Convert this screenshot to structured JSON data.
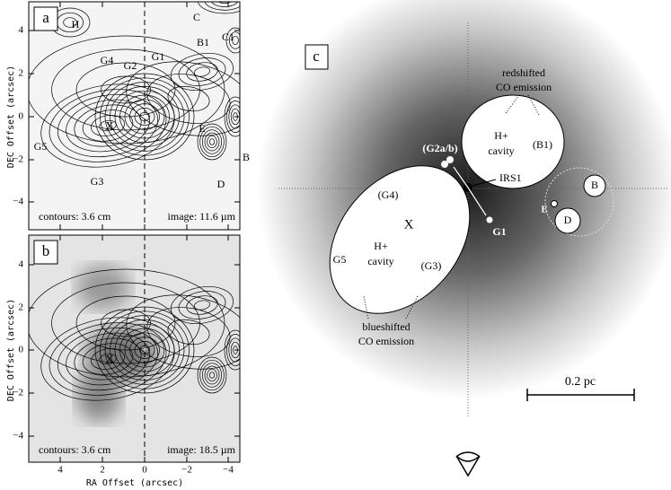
{
  "axes": {
    "y_label": "DEC Offset (arcsec)",
    "x_label": "RA Offset (arcsec)",
    "x_ticks": [
      "4",
      "2",
      "0",
      "−2",
      "−4"
    ],
    "y_ticks": [
      "4",
      "2",
      "0",
      "−2",
      "−4"
    ]
  },
  "panels": [
    {
      "label": "a",
      "contour_note": "contours: 3.6 cm",
      "image_note": "image: 11.6 µm",
      "annotations": [
        "H",
        "C",
        "C1",
        "B1",
        "G4",
        "G2",
        "G1",
        "X",
        "E",
        "G5",
        "G3",
        "D",
        "B"
      ]
    },
    {
      "label": "b",
      "contour_note": "contours: 3.6 cm",
      "image_note": "image: 18.5 µm",
      "annotations": [
        "X"
      ]
    }
  ],
  "diagram": {
    "label": "c",
    "red_label": [
      "redshifted",
      "CO emission"
    ],
    "blue_label": [
      "blueshifted",
      "CO emission"
    ],
    "upper_cavity": [
      "H+",
      "cavity",
      "(B1)"
    ],
    "lower_cavity": [
      "H+",
      "cavity",
      "X",
      "G5",
      "(G4)",
      "(G3)"
    ],
    "sources": [
      "(G2a/b)",
      "IRS1",
      "G1",
      "E",
      "D",
      "B"
    ],
    "scale": "0.2 pc"
  }
}
